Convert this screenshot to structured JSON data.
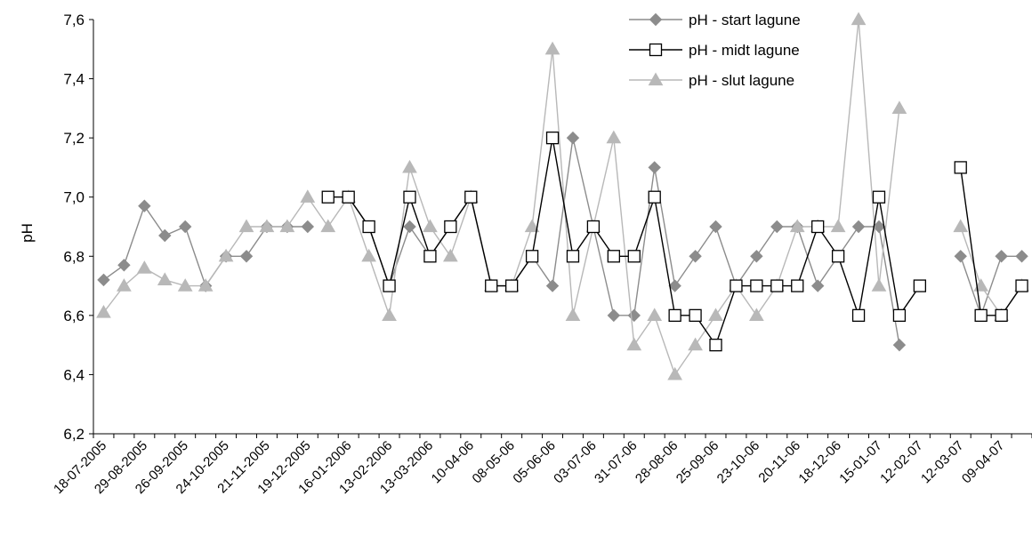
{
  "chart_data": {
    "type": "line",
    "title": "",
    "xlabel": "",
    "ylabel": "pH",
    "ylim": [
      6.2,
      7.6
    ],
    "ytick_labels": [
      "6,2",
      "6,4",
      "6,6",
      "6,8",
      "7,0",
      "7,2",
      "7,4",
      "7,6"
    ],
    "grid": false,
    "legend": "top-right",
    "x_tick_labels": [
      "18-07-2005",
      "29-08-2005",
      "26-09-2005",
      "24-10-2005",
      "21-11-2005",
      "19-12-2005",
      "16-01-2006",
      "13-02-2006",
      "13-03-2006",
      "10-04-06",
      "08-05-06",
      "05-06-06",
      "03-07-06",
      "31-07-06",
      "28-08-06",
      "25-09-06",
      "23-10-06",
      "20-11-06",
      "18-12-06",
      "15-01-07",
      "12-02-07",
      "12-03-07",
      "09-04-07"
    ],
    "series": [
      {
        "name": "pH - start lagune",
        "color": "#8c8c8c",
        "marker": "diamond",
        "values": [
          6.72,
          6.77,
          6.97,
          6.87,
          6.9,
          6.7,
          6.8,
          6.8,
          6.9,
          6.9,
          6.9,
          null,
          7.0,
          6.9,
          6.7,
          6.9,
          6.8,
          6.9,
          7.0,
          6.7,
          6.7,
          6.8,
          6.7,
          7.2,
          6.9,
          6.6,
          6.6,
          7.1,
          6.7,
          6.8,
          6.9,
          6.7,
          6.8,
          6.9,
          6.9,
          6.7,
          6.8,
          6.9,
          6.9,
          6.5,
          null,
          null,
          6.8,
          6.6,
          6.8,
          6.8
        ]
      },
      {
        "name": "pH - midt lagune",
        "color": "#000000",
        "marker": "square",
        "values": [
          null,
          null,
          null,
          null,
          null,
          null,
          null,
          null,
          null,
          null,
          null,
          7.0,
          7.0,
          6.9,
          6.7,
          7.0,
          6.8,
          6.9,
          7.0,
          6.7,
          6.7,
          6.8,
          7.2,
          6.8,
          6.9,
          6.8,
          6.8,
          7.0,
          6.6,
          6.6,
          6.5,
          6.7,
          6.7,
          6.7,
          6.7,
          6.9,
          6.8,
          6.6,
          7.0,
          6.6,
          6.7,
          null,
          7.1,
          6.6,
          6.6,
          6.7
        ]
      },
      {
        "name": "pH - slut lagune",
        "color": "#b8b8b8",
        "marker": "triangle",
        "values": [
          6.61,
          6.7,
          6.76,
          6.72,
          6.7,
          6.7,
          6.8,
          6.9,
          6.9,
          6.9,
          7.0,
          6.9,
          7.0,
          6.8,
          6.6,
          7.1,
          6.9,
          6.8,
          7.0,
          6.7,
          6.7,
          6.9,
          7.5,
          6.6,
          6.9,
          7.2,
          6.5,
          6.6,
          6.4,
          6.5,
          6.6,
          6.7,
          6.6,
          6.7,
          6.9,
          6.9,
          6.9,
          7.6,
          6.7,
          7.3,
          null,
          null,
          6.9,
          6.7,
          6.6,
          6.7
        ]
      }
    ]
  }
}
